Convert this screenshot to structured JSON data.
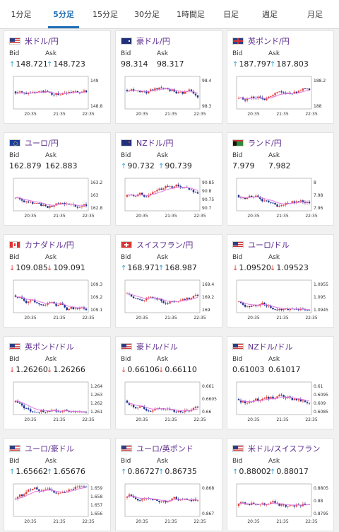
{
  "tabs": [
    {
      "label": "1分足",
      "active": false
    },
    {
      "label": "5分足",
      "active": true
    },
    {
      "label": "15分足",
      "active": false
    },
    {
      "label": "30分足",
      "active": false
    },
    {
      "label": "1時間足",
      "active": false
    },
    {
      "label": "日足",
      "active": false
    },
    {
      "label": "週足",
      "active": false
    },
    {
      "label": "月足",
      "active": false
    }
  ],
  "colors": {
    "up": "#2f9fd6",
    "down": "#e0413a",
    "ma": "#e27be6",
    "candle_up": "#e0413a",
    "candle_down": "#1a2f8f",
    "accent": "#1f6fb5"
  },
  "cards": [
    {
      "pair": "米ドル/円",
      "flag": "us",
      "bid_label": "Bid",
      "ask_label": "Ask",
      "direction": "up",
      "bid": "148.721",
      "ask": "148.723",
      "y_ticks": [
        "149",
        "148.8"
      ],
      "x_ticks": [
        "20:35",
        "21:35",
        "22:35"
      ]
    },
    {
      "pair": "豪ドル/円",
      "flag": "au",
      "bid_label": "Bid",
      "ask_label": "Ask",
      "direction": "",
      "bid": "98.314",
      "ask": "98.317",
      "y_ticks": [
        "98.4",
        "98.3"
      ],
      "x_ticks": [
        "20:35",
        "21:35",
        "22:35"
      ]
    },
    {
      "pair": "英ポンド/円",
      "flag": "gb",
      "bid_label": "Bid",
      "ask_label": "Ask",
      "direction": "up",
      "bid": "187.797",
      "ask": "187.803",
      "y_ticks": [
        "188.2",
        "188"
      ],
      "x_ticks": [
        "20:35",
        "21:35",
        "22:35"
      ]
    },
    {
      "pair": "ユーロ/円",
      "flag": "eu",
      "bid_label": "Bid",
      "ask_label": "Ask",
      "direction": "",
      "bid": "162.879",
      "ask": "162.883",
      "y_ticks": [
        "163.2",
        "163",
        "162.8"
      ],
      "x_ticks": [
        "20:35",
        "21:35",
        "22:35"
      ]
    },
    {
      "pair": "NZドル/円",
      "flag": "nz",
      "bid_label": "Bid",
      "ask_label": "Ask",
      "direction": "up",
      "bid": "90.732",
      "ask": "90.739",
      "y_ticks": [
        "90.85",
        "90.8",
        "90.75",
        "90.7"
      ],
      "x_ticks": [
        "20:35",
        "21:35",
        "22:35"
      ]
    },
    {
      "pair": "ランド/円",
      "flag": "za",
      "bid_label": "Bid",
      "ask_label": "Ask",
      "direction": "",
      "bid": "7.979",
      "ask": "7.982",
      "y_ticks": [
        "8",
        "7.98",
        "7.96"
      ],
      "x_ticks": [
        "20:35",
        "21:35",
        "22:35"
      ]
    },
    {
      "pair": "カナダドル/円",
      "flag": "ca",
      "bid_label": "Bid",
      "ask_label": "Ask",
      "direction": "down",
      "bid": "109.085",
      "ask": "109.091",
      "y_ticks": [
        "109.3",
        "109.2",
        "109.1"
      ],
      "x_ticks": [
        "20:35",
        "21:35",
        "22:35"
      ]
    },
    {
      "pair": "スイスフラン/円",
      "flag": "ch",
      "bid_label": "Bid",
      "ask_label": "Ask",
      "direction": "up",
      "bid": "168.971",
      "ask": "168.987",
      "y_ticks": [
        "169.4",
        "169.2",
        "169"
      ],
      "x_ticks": [
        "20:35",
        "21:35",
        "22:35"
      ]
    },
    {
      "pair": "ユーロ/ドル",
      "flag": "us",
      "bid_label": "Bid",
      "ask_label": "Ask",
      "direction": "down",
      "bid": "1.09520",
      "ask": "1.09523",
      "y_ticks": [
        "1.0955",
        "1.095",
        "1.0945"
      ],
      "x_ticks": [
        "20:35",
        "21:35",
        "22:35"
      ]
    },
    {
      "pair": "英ポンド/ドル",
      "flag": "us",
      "bid_label": "Bid",
      "ask_label": "Ask",
      "direction": "down",
      "bid": "1.26260",
      "ask": "1.26266",
      "y_ticks": [
        "1.264",
        "1.263",
        "1.262",
        "1.261"
      ],
      "x_ticks": [
        "20:35",
        "21:35",
        "22:35"
      ]
    },
    {
      "pair": "豪ドル/ドル",
      "flag": "us",
      "bid_label": "Bid",
      "ask_label": "Ask",
      "direction": "down",
      "bid": "0.66106",
      "ask": "0.66110",
      "y_ticks": [
        "0.661",
        "0.6605",
        "0.66"
      ],
      "x_ticks": [
        "20:35",
        "21:35",
        "22:35"
      ]
    },
    {
      "pair": "NZドル/ドル",
      "flag": "us",
      "bid_label": "Bid",
      "ask_label": "Ask",
      "direction": "",
      "bid": "0.61003",
      "ask": "0.61017",
      "y_ticks": [
        "0.61",
        "0.6095",
        "0.609",
        "0.6085"
      ],
      "x_ticks": [
        "20:35",
        "21:35",
        "22:35"
      ]
    },
    {
      "pair": "ユーロ/豪ドル",
      "flag": "us",
      "bid_label": "Bid",
      "ask_label": "Ask",
      "direction": "up",
      "bid": "1.65662",
      "ask": "1.65676",
      "y_ticks": [
        "1.659",
        "1.658",
        "1.657",
        "1.656"
      ],
      "x_ticks": [
        "20:35",
        "21:35",
        "22:35"
      ]
    },
    {
      "pair": "ユーロ/英ポンド",
      "flag": "us",
      "bid_label": "Bid",
      "ask_label": "Ask",
      "direction": "up",
      "bid": "0.86727",
      "ask": "0.86735",
      "y_ticks": [
        "0.868",
        "0.867"
      ],
      "x_ticks": [
        "20:35",
        "21:35",
        "22:35"
      ]
    },
    {
      "pair": "米ドル/スイスフラン",
      "flag": "us",
      "bid_label": "Bid",
      "ask_label": "Ask",
      "direction": "up",
      "bid": "0.88002",
      "ask": "0.88017",
      "y_ticks": [
        "0.8805",
        "0.88",
        "0.8795"
      ],
      "x_ticks": [
        "20:35",
        "21:35",
        "22:35"
      ]
    }
  ]
}
